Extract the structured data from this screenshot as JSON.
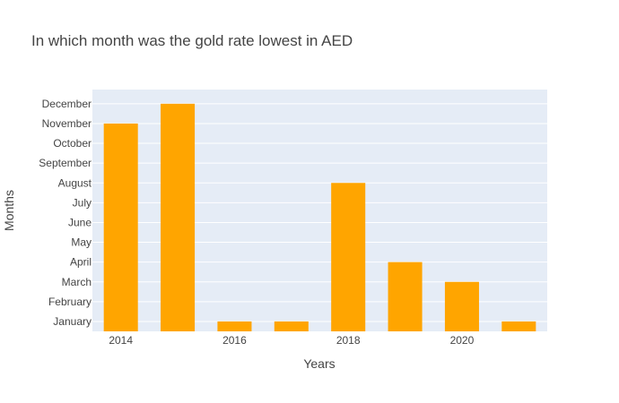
{
  "chart_data": {
    "type": "bar",
    "title": "In which month was the gold rate lowest in AED",
    "xlabel": "Years",
    "ylabel": "Months",
    "x": [
      2014,
      2015,
      2016,
      2017,
      2018,
      2019,
      2020,
      2021
    ],
    "values": [
      "November",
      "December",
      "January",
      "January",
      "August",
      "April",
      "March",
      "January"
    ],
    "y_categories": [
      "January",
      "February",
      "March",
      "April",
      "May",
      "June",
      "July",
      "August",
      "September",
      "October",
      "November",
      "December"
    ],
    "x_tick_labels": [
      "2014",
      "2016",
      "2018",
      "2020"
    ],
    "xlim": [
      2013.5,
      2021.5
    ],
    "grid": true,
    "legend": "none",
    "colors": {
      "bar": "#ffa500",
      "plot_bg": "#e5ecf6",
      "gridline": "#ffffff"
    }
  }
}
